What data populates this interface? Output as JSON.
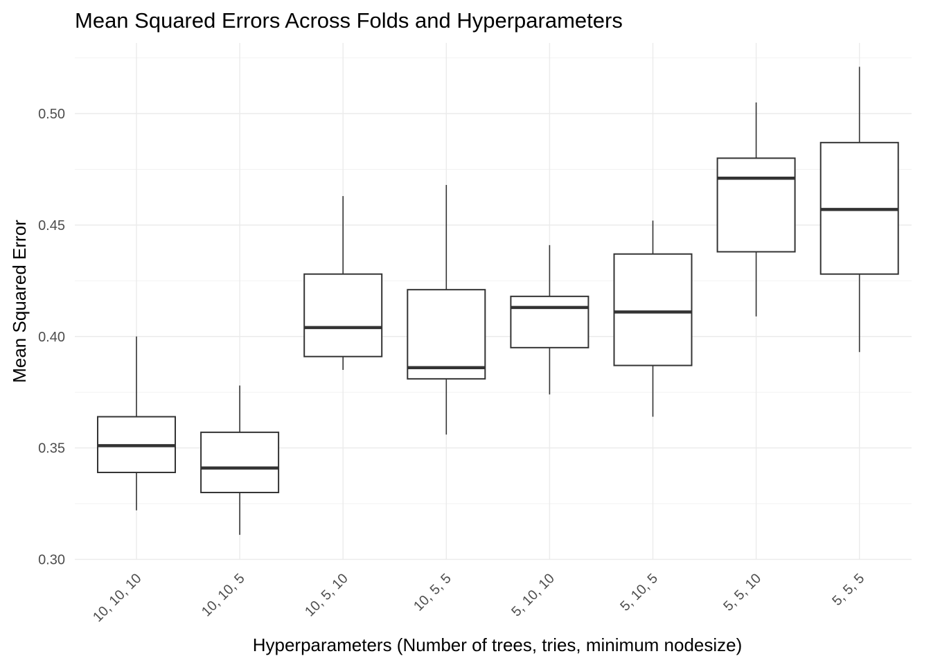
{
  "chart_data": {
    "type": "boxplot",
    "title": "Mean Squared Errors Across Folds and Hyperparameters",
    "xlabel": "Hyperparameters (Number of trees, tries, minimum nodesize)",
    "ylabel": "Mean Squared Error",
    "ylim": [
      0.3,
      0.525
    ],
    "yticks": [
      0.3,
      0.35,
      0.4,
      0.45,
      0.5
    ],
    "ytick_labels": [
      "0.30",
      "0.35",
      "0.40",
      "0.45",
      "0.50"
    ],
    "grid": true,
    "categories": [
      "10, 10, 10",
      "10, 10, 5",
      "10, 5, 10",
      "10, 5, 5",
      "5, 10, 10",
      "5, 10, 5",
      "5, 5, 10",
      "5, 5, 5"
    ],
    "boxes": [
      {
        "min": 0.322,
        "q1": 0.339,
        "median": 0.351,
        "q3": 0.364,
        "max": 0.4
      },
      {
        "min": 0.311,
        "q1": 0.33,
        "median": 0.341,
        "q3": 0.357,
        "max": 0.378
      },
      {
        "min": 0.385,
        "q1": 0.391,
        "median": 0.404,
        "q3": 0.428,
        "max": 0.463
      },
      {
        "min": 0.356,
        "q1": 0.381,
        "median": 0.386,
        "q3": 0.421,
        "max": 0.468
      },
      {
        "min": 0.374,
        "q1": 0.395,
        "median": 0.413,
        "q3": 0.418,
        "max": 0.441
      },
      {
        "min": 0.364,
        "q1": 0.387,
        "median": 0.411,
        "q3": 0.437,
        "max": 0.452
      },
      {
        "min": 0.409,
        "q1": 0.438,
        "median": 0.471,
        "q3": 0.48,
        "max": 0.505
      },
      {
        "min": 0.393,
        "q1": 0.428,
        "median": 0.457,
        "q3": 0.487,
        "max": 0.521
      }
    ]
  }
}
